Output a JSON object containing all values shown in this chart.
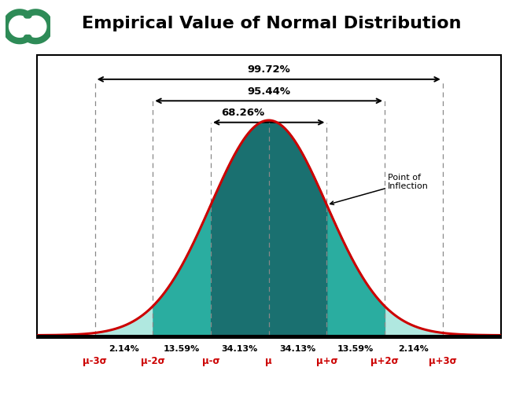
{
  "title": "Empirical Value of Normal Distribution",
  "title_fontsize": 16,
  "title_color": "#000000",
  "logo_color": "#2e8b57",
  "curve_color": "#cc0000",
  "fill_outer_color": "#b0e8e0",
  "fill_2sigma_color": "#2aada0",
  "fill_1sigma_color": "#1a7070",
  "dashed_line_color": "#888888",
  "arrow_color": "#000000",
  "percent_labels": [
    "2.14%",
    "13.59%",
    "34.13%",
    "34.13%",
    "13.59%",
    "2.14%"
  ],
  "x_labels": [
    "μ-3σ",
    "μ-2σ",
    "μ-σ",
    "μ",
    "μ+σ",
    "μ+2σ",
    "μ+3σ"
  ],
  "x_label_color": "#cc0000",
  "bracket_68": "68.26%",
  "bracket_95": "95.44%",
  "bracket_99": "99.72%",
  "point_of_inflection_text": "Point of\nInflection",
  "background_color": "#ffffff"
}
